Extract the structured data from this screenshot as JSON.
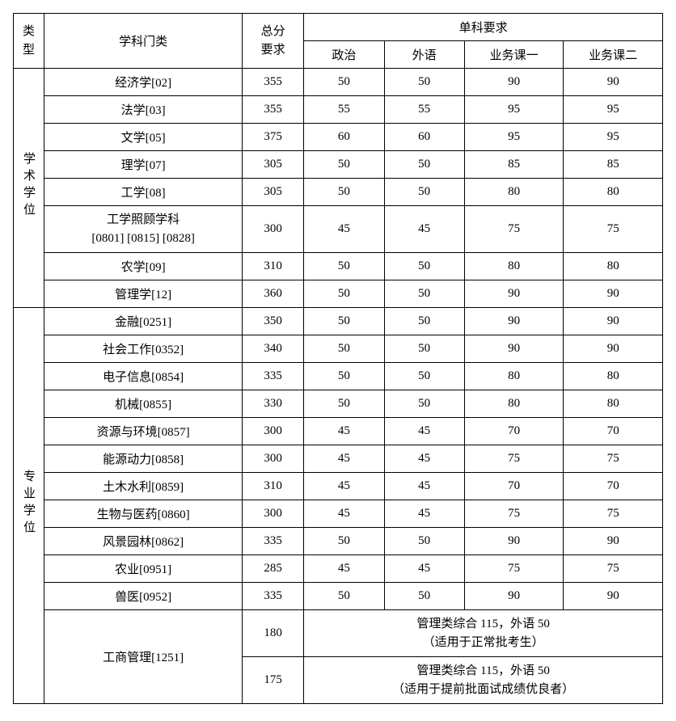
{
  "header": {
    "type_label": "类型",
    "category_label": "学科门类",
    "total_label_line1": "总分",
    "total_label_line2": "要求",
    "subjects_group_label": "单科要求",
    "subject_politics": "政治",
    "subject_foreign": "外语",
    "subject_course1": "业务课一",
    "subject_course2": "业务课二"
  },
  "groups": {
    "academic_label": "学术学位",
    "professional_label": "专业学位"
  },
  "academic": [
    {
      "cat": "经济学[02]",
      "total": "355",
      "s1": "50",
      "s2": "50",
      "s3": "90",
      "s4": "90"
    },
    {
      "cat": "法学[03]",
      "total": "355",
      "s1": "55",
      "s2": "55",
      "s3": "95",
      "s4": "95"
    },
    {
      "cat": "文学[05]",
      "total": "375",
      "s1": "60",
      "s2": "60",
      "s3": "95",
      "s4": "95"
    },
    {
      "cat": "理学[07]",
      "total": "305",
      "s1": "50",
      "s2": "50",
      "s3": "85",
      "s4": "85"
    },
    {
      "cat": "工学[08]",
      "total": "305",
      "s1": "50",
      "s2": "50",
      "s3": "80",
      "s4": "80"
    },
    {
      "cat": "工学照顾学科\n[0801] [0815] [0828]",
      "total": "300",
      "s1": "45",
      "s2": "45",
      "s3": "75",
      "s4": "75"
    },
    {
      "cat": "农学[09]",
      "total": "310",
      "s1": "50",
      "s2": "50",
      "s3": "80",
      "s4": "80"
    },
    {
      "cat": "管理学[12]",
      "total": "360",
      "s1": "50",
      "s2": "50",
      "s3": "90",
      "s4": "90"
    }
  ],
  "professional": [
    {
      "cat": "金融[0251]",
      "total": "350",
      "s1": "50",
      "s2": "50",
      "s3": "90",
      "s4": "90"
    },
    {
      "cat": "社会工作[0352]",
      "total": "340",
      "s1": "50",
      "s2": "50",
      "s3": "90",
      "s4": "90"
    },
    {
      "cat": "电子信息[0854]",
      "total": "335",
      "s1": "50",
      "s2": "50",
      "s3": "80",
      "s4": "80"
    },
    {
      "cat": "机械[0855]",
      "total": "330",
      "s1": "50",
      "s2": "50",
      "s3": "80",
      "s4": "80"
    },
    {
      "cat": "资源与环境[0857]",
      "total": "300",
      "s1": "45",
      "s2": "45",
      "s3": "70",
      "s4": "70"
    },
    {
      "cat": "能源动力[0858]",
      "total": "300",
      "s1": "45",
      "s2": "45",
      "s3": "75",
      "s4": "75"
    },
    {
      "cat": "土木水利[0859]",
      "total": "310",
      "s1": "45",
      "s2": "45",
      "s3": "70",
      "s4": "70"
    },
    {
      "cat": "生物与医药[0860]",
      "total": "300",
      "s1": "45",
      "s2": "45",
      "s3": "75",
      "s4": "75"
    },
    {
      "cat": "风景园林[0862]",
      "total": "335",
      "s1": "50",
      "s2": "50",
      "s3": "90",
      "s4": "90"
    },
    {
      "cat": "农业[0951]",
      "total": "285",
      "s1": "45",
      "s2": "45",
      "s3": "75",
      "s4": "75"
    },
    {
      "cat": "兽医[0952]",
      "total": "335",
      "s1": "50",
      "s2": "50",
      "s3": "90",
      "s4": "90"
    }
  ],
  "mba": {
    "category": "工商管理[1251]",
    "row1_total": "180",
    "row1_note_line1": "管理类综合 115，外语 50",
    "row1_note_line2": "（适用于正常批考生）",
    "row2_total": "175",
    "row2_note_line1": "管理类综合 115，外语 50",
    "row2_note_line2": "（适用于提前批面试成绩优良者）"
  }
}
